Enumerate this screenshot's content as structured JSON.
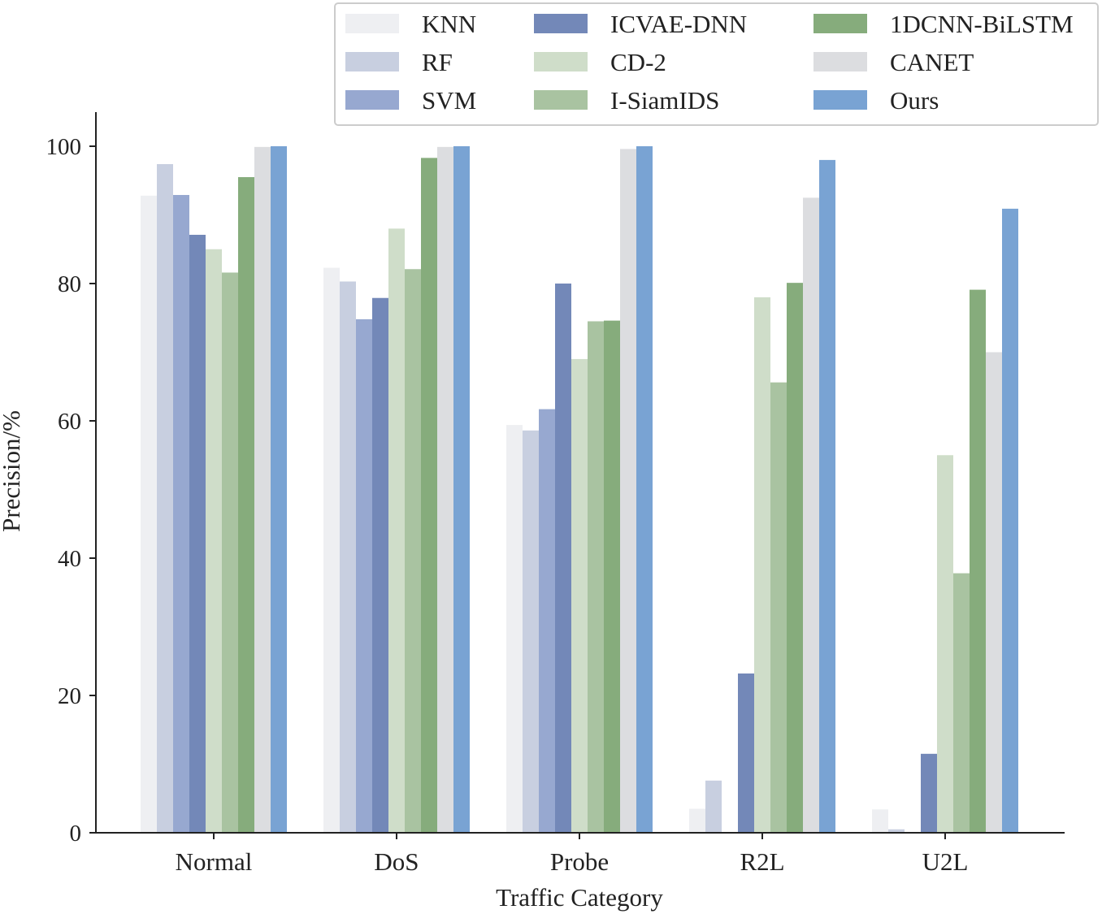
{
  "chart_data": {
    "type": "bar",
    "title": "",
    "xlabel": "Traffic Category",
    "ylabel": "Precision/%",
    "ylim": [
      0,
      105
    ],
    "yticks": [
      0,
      20,
      40,
      60,
      80,
      100
    ],
    "grid": false,
    "legend_position": "top-right",
    "categories": [
      "Normal",
      "DoS",
      "Probe",
      "R2L",
      "U2L"
    ],
    "series": [
      {
        "name": "KNN",
        "color": "#eeeff2",
        "values": [
          92.8,
          82.3,
          59.4,
          3.5,
          3.4
        ]
      },
      {
        "name": "RF",
        "color": "#c8cfe0",
        "values": [
          97.4,
          80.3,
          58.6,
          7.6,
          0.5
        ]
      },
      {
        "name": "SVM",
        "color": "#97a8d0",
        "values": [
          92.9,
          74.8,
          61.7,
          0,
          0
        ]
      },
      {
        "name": "ICVAE-DNN",
        "color": "#7388b8",
        "values": [
          87.1,
          77.9,
          80.0,
          23.2,
          11.5
        ]
      },
      {
        "name": "CD-2",
        "color": "#cfddc9",
        "values": [
          85.0,
          88.0,
          69.0,
          78.0,
          55.0
        ]
      },
      {
        "name": "I-SiamIDS",
        "color": "#a9c3a1",
        "values": [
          81.6,
          82.1,
          74.5,
          65.6,
          37.8
        ]
      },
      {
        "name": "1DCNN-BiLSTM",
        "color": "#86ac7c",
        "values": [
          95.5,
          98.3,
          74.6,
          80.1,
          79.1
        ]
      },
      {
        "name": "CANET",
        "color": "#dcdde0",
        "values": [
          99.9,
          99.9,
          99.6,
          92.5,
          70.0
        ]
      },
      {
        "name": "Ours",
        "color": "#79a3d3",
        "values": [
          100.0,
          100.0,
          100.0,
          98.0,
          90.9
        ]
      }
    ]
  }
}
